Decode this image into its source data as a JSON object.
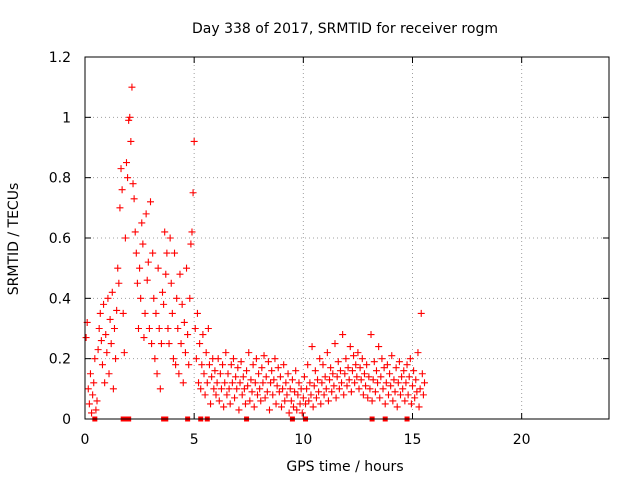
{
  "chart_data": {
    "type": "scatter",
    "title": "Day 338 of 2017, SRMTID for receiver rogm",
    "xlabel": "GPS time / hours",
    "ylabel": "SRMTID / TECUs",
    "xlim": [
      0,
      24
    ],
    "ylim": [
      0,
      1.2
    ],
    "grid": true,
    "x_ticks": [
      0,
      5,
      10,
      15,
      20
    ],
    "y_ticks": [
      0,
      0.2,
      0.4,
      0.6,
      0.8,
      1,
      1.2
    ],
    "x_tick_labels": [
      "0",
      "5",
      "10",
      "15",
      "20"
    ],
    "y_tick_labels": [
      "0",
      "0.2",
      "0.4",
      "0.6",
      "0.8",
      "1",
      "1.2"
    ],
    "marker": "plus",
    "color": "#ff0000",
    "series": [
      {
        "name": "SRMTID",
        "points": [
          [
            0.05,
            0.27
          ],
          [
            0.1,
            0.32
          ],
          [
            0.15,
            0.1
          ],
          [
            0.2,
            0.05
          ],
          [
            0.25,
            0.15
          ],
          [
            0.3,
            0.02
          ],
          [
            0.35,
            0.08
          ],
          [
            0.4,
            0.12
          ],
          [
            0.45,
            0.2
          ],
          [
            0.5,
            0.03
          ],
          [
            0.55,
            0.06
          ],
          [
            0.6,
            0.23
          ],
          [
            0.65,
            0.3
          ],
          [
            0.7,
            0.35
          ],
          [
            0.75,
            0.26
          ],
          [
            0.8,
            0.18
          ],
          [
            0.85,
            0.38
          ],
          [
            0.9,
            0.12
          ],
          [
            0.95,
            0.28
          ],
          [
            1.0,
            0.22
          ],
          [
            1.05,
            0.4
          ],
          [
            1.1,
            0.15
          ],
          [
            1.15,
            0.33
          ],
          [
            1.2,
            0.25
          ],
          [
            1.25,
            0.42
          ],
          [
            1.3,
            0.1
          ],
          [
            1.35,
            0.3
          ],
          [
            1.4,
            0.2
          ],
          [
            1.45,
            0.36
          ],
          [
            1.5,
            0.5
          ],
          [
            1.55,
            0.45
          ],
          [
            1.6,
            0.7
          ],
          [
            1.65,
            0.83
          ],
          [
            1.7,
            0.76
          ],
          [
            1.75,
            0.35
          ],
          [
            1.8,
            0.22
          ],
          [
            1.85,
            0.6
          ],
          [
            1.9,
            0.85
          ],
          [
            1.95,
            0.8
          ],
          [
            2.0,
            0.99
          ],
          [
            2.05,
            1.0
          ],
          [
            2.1,
            0.92
          ],
          [
            2.15,
            1.1
          ],
          [
            2.2,
            0.78
          ],
          [
            2.25,
            0.73
          ],
          [
            2.3,
            0.62
          ],
          [
            2.35,
            0.55
          ],
          [
            2.4,
            0.45
          ],
          [
            2.45,
            0.3
          ],
          [
            2.5,
            0.5
          ],
          [
            2.55,
            0.4
          ],
          [
            2.6,
            0.65
          ],
          [
            2.65,
            0.58
          ],
          [
            2.7,
            0.27
          ],
          [
            2.75,
            0.35
          ],
          [
            2.8,
            0.68
          ],
          [
            2.85,
            0.46
          ],
          [
            2.9,
            0.52
          ],
          [
            2.95,
            0.3
          ],
          [
            3.0,
            0.72
          ],
          [
            3.05,
            0.25
          ],
          [
            3.1,
            0.55
          ],
          [
            3.15,
            0.4
          ],
          [
            3.2,
            0.2
          ],
          [
            3.25,
            0.35
          ],
          [
            3.3,
            0.15
          ],
          [
            3.35,
            0.5
          ],
          [
            3.4,
            0.3
          ],
          [
            3.45,
            0.1
          ],
          [
            3.5,
            0.25
          ],
          [
            3.55,
            0.42
          ],
          [
            3.6,
            0.38
          ],
          [
            3.65,
            0.62
          ],
          [
            3.7,
            0.48
          ],
          [
            3.75,
            0.55
          ],
          [
            3.8,
            0.3
          ],
          [
            3.85,
            0.25
          ],
          [
            3.9,
            0.6
          ],
          [
            3.95,
            0.45
          ],
          [
            4.0,
            0.35
          ],
          [
            4.05,
            0.2
          ],
          [
            4.1,
            0.55
          ],
          [
            4.15,
            0.18
          ],
          [
            4.2,
            0.4
          ],
          [
            4.25,
            0.3
          ],
          [
            4.3,
            0.15
          ],
          [
            4.35,
            0.48
          ],
          [
            4.4,
            0.25
          ],
          [
            4.45,
            0.38
          ],
          [
            4.5,
            0.12
          ],
          [
            4.55,
            0.32
          ],
          [
            4.6,
            0.22
          ],
          [
            4.65,
            0.5
          ],
          [
            4.7,
            0.28
          ],
          [
            4.75,
            0.18
          ],
          [
            4.8,
            0.4
          ],
          [
            4.85,
            0.58
          ],
          [
            4.9,
            0.62
          ],
          [
            4.95,
            0.75
          ],
          [
            5.0,
            0.92
          ],
          [
            5.05,
            0.3
          ],
          [
            5.1,
            0.2
          ],
          [
            5.15,
            0.35
          ],
          [
            5.2,
            0.12
          ],
          [
            5.25,
            0.25
          ],
          [
            5.3,
            0.1
          ],
          [
            5.35,
            0.18
          ],
          [
            5.4,
            0.28
          ],
          [
            5.45,
            0.15
          ],
          [
            5.5,
            0.08
          ],
          [
            5.55,
            0.22
          ],
          [
            5.6,
            0.12
          ],
          [
            5.65,
            0.3
          ],
          [
            5.7,
            0.18
          ],
          [
            5.75,
            0.05
          ],
          [
            5.8,
            0.14
          ],
          [
            5.85,
            0.2
          ],
          [
            5.9,
            0.1
          ],
          [
            5.95,
            0.16
          ],
          [
            6.0,
            0.08
          ],
          [
            6.05,
            0.12
          ],
          [
            6.1,
            0.2
          ],
          [
            6.15,
            0.06
          ],
          [
            6.2,
            0.15
          ],
          [
            6.25,
            0.1
          ],
          [
            6.3,
            0.18
          ],
          [
            6.35,
            0.04
          ],
          [
            6.4,
            0.12
          ],
          [
            6.45,
            0.22
          ],
          [
            6.5,
            0.08
          ],
          [
            6.55,
            0.15
          ],
          [
            6.6,
            0.1
          ],
          [
            6.65,
            0.05
          ],
          [
            6.7,
            0.18
          ],
          [
            6.75,
            0.12
          ],
          [
            6.8,
            0.2
          ],
          [
            6.85,
            0.07
          ],
          [
            6.9,
            0.14
          ],
          [
            6.95,
            0.1
          ],
          [
            7.0,
            0.17
          ],
          [
            7.05,
            0.03
          ],
          [
            7.1,
            0.12
          ],
          [
            7.15,
            0.19
          ],
          [
            7.2,
            0.08
          ],
          [
            7.25,
            0.14
          ],
          [
            7.3,
            0.1
          ],
          [
            7.35,
            0.05
          ],
          [
            7.4,
            0.16
          ],
          [
            7.45,
            0.11
          ],
          [
            7.5,
            0.22
          ],
          [
            7.55,
            0.06
          ],
          [
            7.6,
            0.13
          ],
          [
            7.65,
            0.09
          ],
          [
            7.7,
            0.18
          ],
          [
            7.75,
            0.04
          ],
          [
            7.8,
            0.12
          ],
          [
            7.85,
            0.2
          ],
          [
            7.9,
            0.08
          ],
          [
            7.95,
            0.15
          ],
          [
            8.0,
            0.1
          ],
          [
            8.05,
            0.06
          ],
          [
            8.1,
            0.17
          ],
          [
            8.15,
            0.12
          ],
          [
            8.2,
            0.21
          ],
          [
            8.25,
            0.07
          ],
          [
            8.3,
            0.14
          ],
          [
            8.35,
            0.09
          ],
          [
            8.4,
            0.19
          ],
          [
            8.45,
            0.03
          ],
          [
            8.5,
            0.12
          ],
          [
            8.55,
            0.16
          ],
          [
            8.6,
            0.08
          ],
          [
            8.65,
            0.13
          ],
          [
            8.7,
            0.2
          ],
          [
            8.75,
            0.05
          ],
          [
            8.8,
            0.11
          ],
          [
            8.85,
            0.17
          ],
          [
            8.9,
            0.09
          ],
          [
            8.95,
            0.14
          ],
          [
            9.0,
            0.04
          ],
          [
            9.05,
            0.1
          ],
          [
            9.1,
            0.18
          ],
          [
            9.15,
            0.06
          ],
          [
            9.2,
            0.12
          ],
          [
            9.25,
            0.08
          ],
          [
            9.3,
            0.15
          ],
          [
            9.35,
            0.02
          ],
          [
            9.4,
            0.1
          ],
          [
            9.45,
            0.06
          ],
          [
            9.5,
            0.13
          ],
          [
            9.55,
            0.04
          ],
          [
            9.6,
            0.09
          ],
          [
            9.65,
            0.16
          ],
          [
            9.7,
            0.03
          ],
          [
            9.75,
            0.08
          ],
          [
            9.8,
            0.12
          ],
          [
            9.85,
            0.05
          ],
          [
            9.9,
            0.1
          ],
          [
            9.95,
            0.02
          ],
          [
            10.0,
            0.07
          ],
          [
            10.05,
            0.14
          ],
          [
            10.1,
            0.05
          ],
          [
            10.15,
            0.1
          ],
          [
            10.2,
            0.18
          ],
          [
            10.25,
            0.06
          ],
          [
            10.3,
            0.12
          ],
          [
            10.35,
            0.08
          ],
          [
            10.4,
            0.24
          ],
          [
            10.45,
            0.04
          ],
          [
            10.5,
            0.11
          ],
          [
            10.55,
            0.16
          ],
          [
            10.6,
            0.07
          ],
          [
            10.65,
            0.13
          ],
          [
            10.7,
            0.09
          ],
          [
            10.75,
            0.2
          ],
          [
            10.8,
            0.05
          ],
          [
            10.85,
            0.12
          ],
          [
            10.9,
            0.18
          ],
          [
            10.95,
            0.08
          ],
          [
            11.0,
            0.14
          ],
          [
            11.05,
            0.1
          ],
          [
            11.1,
            0.22
          ],
          [
            11.15,
            0.06
          ],
          [
            11.2,
            0.13
          ],
          [
            11.25,
            0.17
          ],
          [
            11.3,
            0.09
          ],
          [
            11.35,
            0.15
          ],
          [
            11.4,
            0.11
          ],
          [
            11.45,
            0.25
          ],
          [
            11.5,
            0.07
          ],
          [
            11.55,
            0.14
          ],
          [
            11.6,
            0.19
          ],
          [
            11.65,
            0.1
          ],
          [
            11.7,
            0.16
          ],
          [
            11.75,
            0.12
          ],
          [
            11.8,
            0.28
          ],
          [
            11.85,
            0.08
          ],
          [
            11.9,
            0.15
          ],
          [
            11.95,
            0.2
          ],
          [
            12.0,
            0.11
          ],
          [
            12.05,
            0.17
          ],
          [
            12.1,
            0.13
          ],
          [
            12.15,
            0.24
          ],
          [
            12.2,
            0.09
          ],
          [
            12.25,
            0.16
          ],
          [
            12.3,
            0.21
          ],
          [
            12.35,
            0.12
          ],
          [
            12.4,
            0.18
          ],
          [
            12.45,
            0.14
          ],
          [
            12.5,
            0.22
          ],
          [
            12.55,
            0.1
          ],
          [
            12.6,
            0.17
          ],
          [
            12.65,
            0.13
          ],
          [
            12.7,
            0.2
          ],
          [
            12.75,
            0.08
          ],
          [
            12.8,
            0.15
          ],
          [
            12.85,
            0.11
          ],
          [
            12.9,
            0.18
          ],
          [
            12.95,
            0.07
          ],
          [
            13.0,
            0.14
          ],
          [
            13.05,
            0.1
          ],
          [
            13.1,
            0.28
          ],
          [
            13.15,
            0.06
          ],
          [
            13.2,
            0.13
          ],
          [
            13.25,
            0.19
          ],
          [
            13.3,
            0.09
          ],
          [
            13.35,
            0.16
          ],
          [
            13.4,
            0.12
          ],
          [
            13.45,
            0.24
          ],
          [
            13.5,
            0.07
          ],
          [
            13.55,
            0.14
          ],
          [
            13.6,
            0.2
          ],
          [
            13.65,
            0.1
          ],
          [
            13.7,
            0.17
          ],
          [
            13.75,
            0.05
          ],
          [
            13.8,
            0.12
          ],
          [
            13.85,
            0.18
          ],
          [
            13.9,
            0.08
          ],
          [
            13.95,
            0.15
          ],
          [
            14.0,
            0.11
          ],
          [
            14.05,
            0.21
          ],
          [
            14.1,
            0.06
          ],
          [
            14.15,
            0.13
          ],
          [
            14.2,
            0.09
          ],
          [
            14.25,
            0.17
          ],
          [
            14.3,
            0.04
          ],
          [
            14.35,
            0.12
          ],
          [
            14.4,
            0.19
          ],
          [
            14.45,
            0.08
          ],
          [
            14.5,
            0.14
          ],
          [
            14.55,
            0.1
          ],
          [
            14.6,
            0.16
          ],
          [
            14.65,
            0.06
          ],
          [
            14.7,
            0.12
          ],
          [
            14.75,
            0.18
          ],
          [
            14.8,
            0.08
          ],
          [
            14.85,
            0.14
          ],
          [
            14.9,
            0.2
          ],
          [
            14.95,
            0.05
          ],
          [
            15.0,
            0.11
          ],
          [
            15.05,
            0.16
          ],
          [
            15.1,
            0.07
          ],
          [
            15.15,
            0.13
          ],
          [
            15.2,
            0.09
          ],
          [
            15.25,
            0.22
          ],
          [
            15.3,
            0.04
          ],
          [
            15.35,
            0.1
          ],
          [
            15.4,
            0.35
          ],
          [
            15.45,
            0.15
          ],
          [
            15.5,
            0.08
          ],
          [
            15.55,
            0.12
          ]
        ]
      }
    ],
    "zero_markers_x": [
      0.45,
      1.75,
      1.85,
      2.0,
      3.6,
      3.7,
      4.7,
      5.3,
      5.6,
      7.4,
      9.5,
      10.1,
      13.15,
      13.75,
      14.75
    ]
  }
}
